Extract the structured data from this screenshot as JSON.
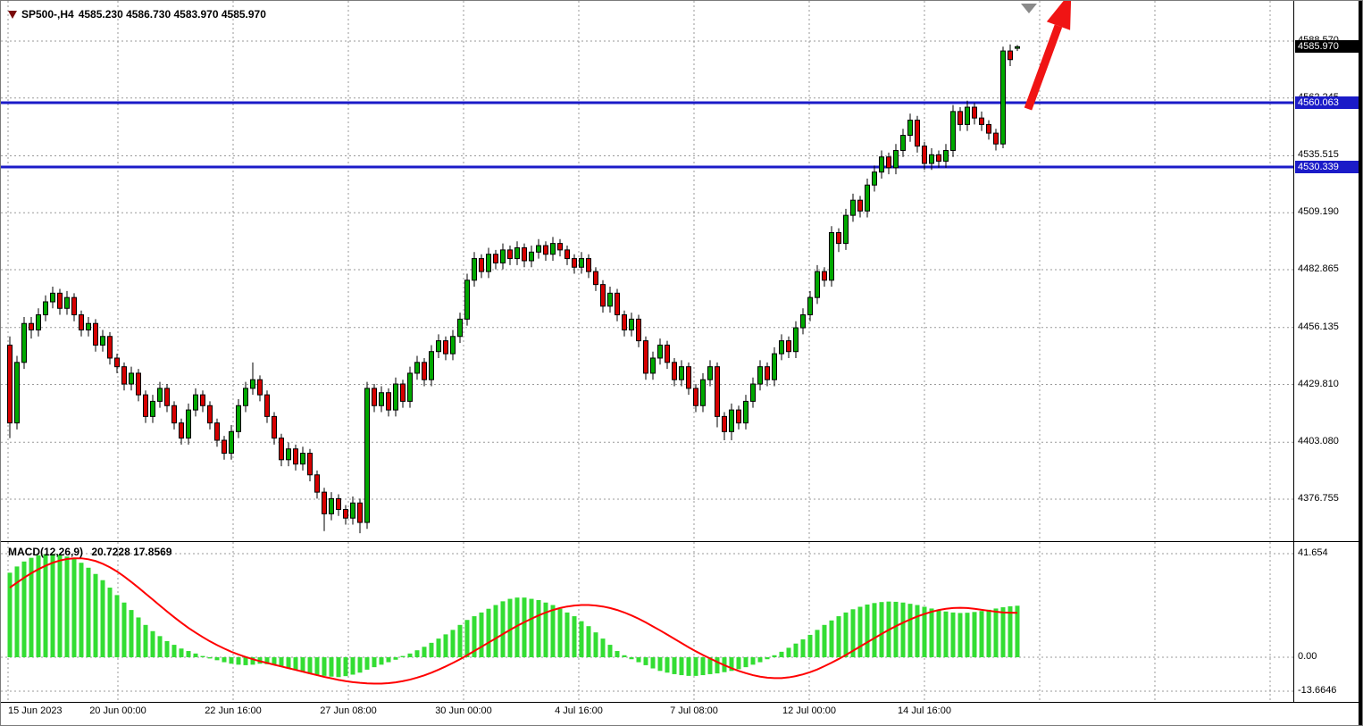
{
  "header": {
    "ohlc_text": "4585.230 4586.730 4583.970 4585.970"
  },
  "colors": {
    "grid": "#9a9a9a",
    "bull": "#00a800",
    "bear": "#d60000",
    "wick": "#000000",
    "macd_histogram": "#33dd33",
    "macd_signal": "#ff0000",
    "level_line": "#1b1bc8",
    "current_price_box": "#000000",
    "arrow": "#f01414",
    "anchor_marker": "#8a8a8a"
  },
  "chart_data": [
    {
      "type": "candlestick",
      "symbol": "SP500-,H4",
      "timeframe": "H4",
      "current_bar": {
        "open": 4585.23,
        "high": 4586.73,
        "low": 4583.97,
        "close": 4585.97
      },
      "current_price": {
        "value": 4585.97,
        "label": "4585.970"
      },
      "horizontal_lines": [
        {
          "price": 4560.063,
          "label": "4560.063"
        },
        {
          "price": 4530.339,
          "label": "4530.339"
        }
      ],
      "y_axis_labels": [
        "4588.570",
        "4562.245",
        "4535.515",
        "4509.190",
        "4482.865",
        "4456.135",
        "4429.810",
        "4403.080",
        "4376.755"
      ],
      "x_axis_labels": [
        "15 Jun 2023",
        "20 Jun 00:00",
        "22 Jun 16:00",
        "27 Jun 08:00",
        "30 Jun 00:00",
        "4 Jul 16:00",
        "7 Jul 08:00",
        "12 Jul 00:00",
        "14 Jul 16:00"
      ],
      "y_axis_range": [
        4365,
        4592
      ],
      "grid": true,
      "annotations": [
        {
          "type": "arrow-up",
          "color": "red",
          "position": "top-right"
        },
        {
          "type": "triangle-anchor",
          "color": "gray",
          "position": "top-right"
        }
      ],
      "candles": [
        [
          4448,
          4452,
          4405,
          4412
        ],
        [
          4412,
          4443,
          4409,
          4440
        ],
        [
          4440,
          4461,
          4437,
          4458
        ],
        [
          4458,
          4461,
          4451,
          4455
        ],
        [
          4455,
          4465,
          4452,
          4462
        ],
        [
          4462,
          4471,
          4459,
          4468
        ],
        [
          4468,
          4475,
          4465,
          4472
        ],
        [
          4472,
          4474,
          4462,
          4465
        ],
        [
          4465,
          4473,
          4462,
          4470
        ],
        [
          4470,
          4472,
          4459,
          4462
        ],
        [
          4462,
          4464,
          4452,
          4455
        ],
        [
          4455,
          4461,
          4452,
          4458
        ],
        [
          4458,
          4460,
          4445,
          4448
        ],
        [
          4448,
          4455,
          4445,
          4452
        ],
        [
          4452,
          4454,
          4439,
          4442
        ],
        [
          4442,
          4444,
          4435,
          4438
        ],
        [
          4438,
          4440,
          4427,
          4430
        ],
        [
          4430,
          4438,
          4427,
          4435
        ],
        [
          4435,
          4437,
          4422,
          4425
        ],
        [
          4425,
          4427,
          4412,
          4415
        ],
        [
          4415,
          4425,
          4412,
          4422
        ],
        [
          4422,
          4431,
          4419,
          4428
        ],
        [
          4428,
          4430,
          4417,
          4420
        ],
        [
          4420,
          4422,
          4409,
          4412
        ],
        [
          4412,
          4414,
          4402,
          4405
        ],
        [
          4405,
          4421,
          4402,
          4418
        ],
        [
          4418,
          4428,
          4415,
          4425
        ],
        [
          4425,
          4427,
          4417,
          4420
        ],
        [
          4420,
          4422,
          4409,
          4412
        ],
        [
          4412,
          4414,
          4401,
          4404
        ],
        [
          4404,
          4406,
          4395,
          4398
        ],
        [
          4398,
          4411,
          4395,
          4408
        ],
        [
          4408,
          4423,
          4405,
          4420
        ],
        [
          4420,
          4431,
          4417,
          4428
        ],
        [
          4428,
          4440,
          4425,
          4432
        ],
        [
          4432,
          4434,
          4422,
          4425
        ],
        [
          4425,
          4427,
          4412,
          4415
        ],
        [
          4415,
          4417,
          4402,
          4405
        ],
        [
          4405,
          4407,
          4392,
          4395
        ],
        [
          4395,
          4403,
          4392,
          4400
        ],
        [
          4400,
          4402,
          4390,
          4393
        ],
        [
          4393,
          4401,
          4390,
          4398
        ],
        [
          4398,
          4400,
          4385,
          4388
        ],
        [
          4388,
          4390,
          4377,
          4380
        ],
        [
          4380,
          4382,
          4362,
          4370
        ],
        [
          4370,
          4380,
          4367,
          4377
        ],
        [
          4377,
          4379,
          4369,
          4372
        ],
        [
          4372,
          4374,
          4365,
          4368
        ],
        [
          4368,
          4378,
          4365,
          4375
        ],
        [
          4375,
          4377,
          4361,
          4366
        ],
        [
          4366,
          4431,
          4363,
          4428
        ],
        [
          4428,
          4430,
          4417,
          4420
        ],
        [
          4420,
          4429,
          4417,
          4426
        ],
        [
          4426,
          4428,
          4415,
          4418
        ],
        [
          4418,
          4433,
          4415,
          4430
        ],
        [
          4430,
          4432,
          4419,
          4422
        ],
        [
          4422,
          4438,
          4419,
          4435
        ],
        [
          4435,
          4443,
          4432,
          4440
        ],
        [
          4440,
          4442,
          4429,
          4432
        ],
        [
          4432,
          4448,
          4429,
          4445
        ],
        [
          4445,
          4453,
          4442,
          4450
        ],
        [
          4450,
          4452,
          4441,
          4444
        ],
        [
          4444,
          4455,
          4441,
          4452
        ],
        [
          4452,
          4463,
          4449,
          4460
        ],
        [
          4460,
          4481,
          4457,
          4478
        ],
        [
          4478,
          4491,
          4475,
          4488
        ],
        [
          4488,
          4490,
          4479,
          4482
        ],
        [
          4482,
          4493,
          4479,
          4490
        ],
        [
          4490,
          4492,
          4483,
          4486
        ],
        [
          4486,
          4495,
          4483,
          4492
        ],
        [
          4492,
          4494,
          4485,
          4488
        ],
        [
          4488,
          4496,
          4485,
          4493
        ],
        [
          4493,
          4495,
          4484,
          4487
        ],
        [
          4487,
          4494,
          4484,
          4491
        ],
        [
          4491,
          4497,
          4488,
          4494
        ],
        [
          4494,
          4496,
          4487,
          4490
        ],
        [
          4490,
          4498,
          4487,
          4495
        ],
        [
          4495,
          4497,
          4489,
          4492
        ],
        [
          4492,
          4494,
          4485,
          4488
        ],
        [
          4488,
          4490,
          4481,
          4484
        ],
        [
          4484,
          4491,
          4481,
          4488
        ],
        [
          4488,
          4490,
          4479,
          4482
        ],
        [
          4482,
          4484,
          4473,
          4476
        ],
        [
          4476,
          4478,
          4463,
          4466
        ],
        [
          4466,
          4475,
          4463,
          4472
        ],
        [
          4472,
          4474,
          4459,
          4462
        ],
        [
          4462,
          4464,
          4452,
          4455
        ],
        [
          4455,
          4463,
          4452,
          4460
        ],
        [
          4460,
          4462,
          4447,
          4450
        ],
        [
          4450,
          4452,
          4432,
          4435
        ],
        [
          4435,
          4445,
          4432,
          4442
        ],
        [
          4442,
          4451,
          4439,
          4448
        ],
        [
          4448,
          4450,
          4437,
          4440
        ],
        [
          4440,
          4442,
          4429,
          4432
        ],
        [
          4432,
          4441,
          4429,
          4438
        ],
        [
          4438,
          4440,
          4425,
          4428
        ],
        [
          4428,
          4430,
          4417,
          4420
        ],
        [
          4420,
          4435,
          4417,
          4432
        ],
        [
          4432,
          4441,
          4429,
          4438
        ],
        [
          4438,
          4440,
          4410,
          4415
        ],
        [
          4415,
          4417,
          4404,
          4408
        ],
        [
          4408,
          4421,
          4404,
          4418
        ],
        [
          4418,
          4420,
          4409,
          4412
        ],
        [
          4412,
          4425,
          4409,
          4422
        ],
        [
          4422,
          4433,
          4419,
          4430
        ],
        [
          4430,
          4441,
          4427,
          4438
        ],
        [
          4438,
          4440,
          4429,
          4432
        ],
        [
          4432,
          4447,
          4429,
          4444
        ],
        [
          4444,
          4453,
          4441,
          4450
        ],
        [
          4450,
          4452,
          4442,
          4445
        ],
        [
          4445,
          4459,
          4442,
          4456
        ],
        [
          4456,
          4465,
          4453,
          4462
        ],
        [
          4462,
          4473,
          4459,
          4470
        ],
        [
          4470,
          4485,
          4467,
          4482
        ],
        [
          4482,
          4484,
          4475,
          4478
        ],
        [
          4478,
          4503,
          4475,
          4500
        ],
        [
          4500,
          4502,
          4491,
          4495
        ],
        [
          4495,
          4511,
          4492,
          4508
        ],
        [
          4508,
          4518,
          4505,
          4515
        ],
        [
          4515,
          4517,
          4507,
          4510
        ],
        [
          4510,
          4525,
          4507,
          4522
        ],
        [
          4522,
          4531,
          4519,
          4528
        ],
        [
          4528,
          4538,
          4525,
          4535
        ],
        [
          4535,
          4537,
          4527,
          4530
        ],
        [
          4530,
          4541,
          4527,
          4538
        ],
        [
          4538,
          4548,
          4535,
          4545
        ],
        [
          4545,
          4555,
          4542,
          4552
        ],
        [
          4552,
          4554,
          4537,
          4540
        ],
        [
          4540,
          4542,
          4529,
          4532
        ],
        [
          4532,
          4539,
          4529,
          4536
        ],
        [
          4536,
          4538,
          4530,
          4533
        ],
        [
          4533,
          4541,
          4530,
          4538
        ],
        [
          4538,
          4559,
          4535,
          4556
        ],
        [
          4556,
          4558,
          4547,
          4550
        ],
        [
          4550,
          4561,
          4547,
          4558
        ],
        [
          4558,
          4560,
          4550,
          4553
        ],
        [
          4553,
          4556,
          4547,
          4550
        ],
        [
          4550,
          4552,
          4543,
          4546
        ],
        [
          4546,
          4548,
          4538,
          4541
        ],
        [
          4541,
          4586,
          4539,
          4584
        ],
        [
          4584,
          4587,
          4577,
          4580
        ],
        [
          4585.23,
          4586.73,
          4583.97,
          4585.97
        ]
      ]
    },
    {
      "type": "bar",
      "name": "MACD(12,26,9)",
      "values_text": "20.7228 17.8569",
      "macd_value": 20.7228,
      "signal_value": 17.8569,
      "y_axis_labels": [
        "41.654",
        "0.00",
        "-13.6646"
      ],
      "y_axis_values": [
        41.654,
        0,
        -13.6646
      ],
      "histogram": [
        34,
        36.5,
        38.5,
        40,
        41,
        41.5,
        41.6,
        41.3,
        40.5,
        39.5,
        38,
        36,
        33.5,
        31,
        28,
        25,
        22,
        19,
        16,
        13,
        10.5,
        8.5,
        6.5,
        5,
        3.5,
        2.5,
        1.5,
        0.5,
        -0.5,
        -1.2,
        -2,
        -2.6,
        -3,
        -3.2,
        -3,
        -2.6,
        -2.8,
        -3.2,
        -3.8,
        -4.5,
        -5.2,
        -5.8,
        -6.4,
        -7,
        -7.5,
        -7.8,
        -8,
        -7.6,
        -7,
        -6.2,
        -5,
        -4,
        -3,
        -2,
        -1,
        0.5,
        1.5,
        2.8,
        4.2,
        5.8,
        7.5,
        9.2,
        11,
        13,
        15,
        16.5,
        18,
        19.5,
        21,
        22.5,
        23.5,
        24,
        24,
        23.5,
        23,
        22,
        21,
        19.5,
        18,
        16.5,
        14.5,
        12.5,
        10,
        7.5,
        5,
        2.5,
        0.8,
        -0.8,
        -2,
        -3.2,
        -4.5,
        -5.5,
        -6.2,
        -6.8,
        -7.2,
        -7.5,
        -7.5,
        -7.2,
        -6.8,
        -6.5,
        -6,
        -5.5,
        -4.8,
        -4,
        -3,
        -2,
        -0.8,
        0.8,
        2.2,
        3.8,
        5.5,
        7.2,
        9,
        11,
        13,
        14.8,
        16.5,
        18,
        19.3,
        20.3,
        21.2,
        21.8,
        22.2,
        22.4,
        22.3,
        22,
        21.5,
        21,
        20.3,
        19.6,
        19,
        18.4,
        18,
        17.8,
        17.9,
        18.2,
        18.6,
        19.1,
        19.6,
        20.1,
        20.5,
        20.72
      ],
      "signal": [
        28,
        30,
        32,
        33.8,
        35.4,
        36.8,
        38,
        38.9,
        39.5,
        39.8,
        39.8,
        39.4,
        38.7,
        37.6,
        36.2,
        34.5,
        32.5,
        30.3,
        28,
        25.6,
        23.2,
        20.8,
        18.4,
        16.1,
        13.9,
        11.8,
        9.9,
        8.1,
        6.4,
        4.9,
        3.5,
        2.2,
        1.1,
        0.1,
        -0.8,
        -1.6,
        -2.3,
        -3,
        -3.7,
        -4.4,
        -5.1,
        -5.8,
        -6.5,
        -7.2,
        -7.9,
        -8.5,
        -9.1,
        -9.6,
        -10,
        -10.3,
        -10.5,
        -10.6,
        -10.6,
        -10.4,
        -10.1,
        -9.6,
        -9,
        -8.2,
        -7.3,
        -6.2,
        -5,
        -3.7,
        -2.3,
        -0.8,
        0.8,
        2.5,
        4.2,
        5.9,
        7.6,
        9.3,
        11,
        12.6,
        14.1,
        15.5,
        16.8,
        18,
        19,
        19.8,
        20.4,
        20.8,
        21,
        21,
        20.8,
        20.4,
        19.8,
        19,
        18,
        16.8,
        15.5,
        14,
        12.4,
        10.8,
        9.1,
        7.4,
        5.7,
        4,
        2.4,
        0.9,
        -0.5,
        -1.9,
        -3.2,
        -4.4,
        -5.5,
        -6.4,
        -7.2,
        -7.8,
        -8.2,
        -8.4,
        -8.4,
        -8.1,
        -7.6,
        -6.9,
        -6,
        -4.9,
        -3.6,
        -2.2,
        -0.7,
        0.9,
        2.6,
        4.3,
        6,
        7.7,
        9.4,
        11,
        12.5,
        13.9,
        15.2,
        16.4,
        17.4,
        18.3,
        19,
        19.5,
        19.8,
        19.9,
        19.8,
        19.5,
        19.1,
        18.7,
        18.3,
        18,
        17.9,
        17.86
      ]
    }
  ]
}
